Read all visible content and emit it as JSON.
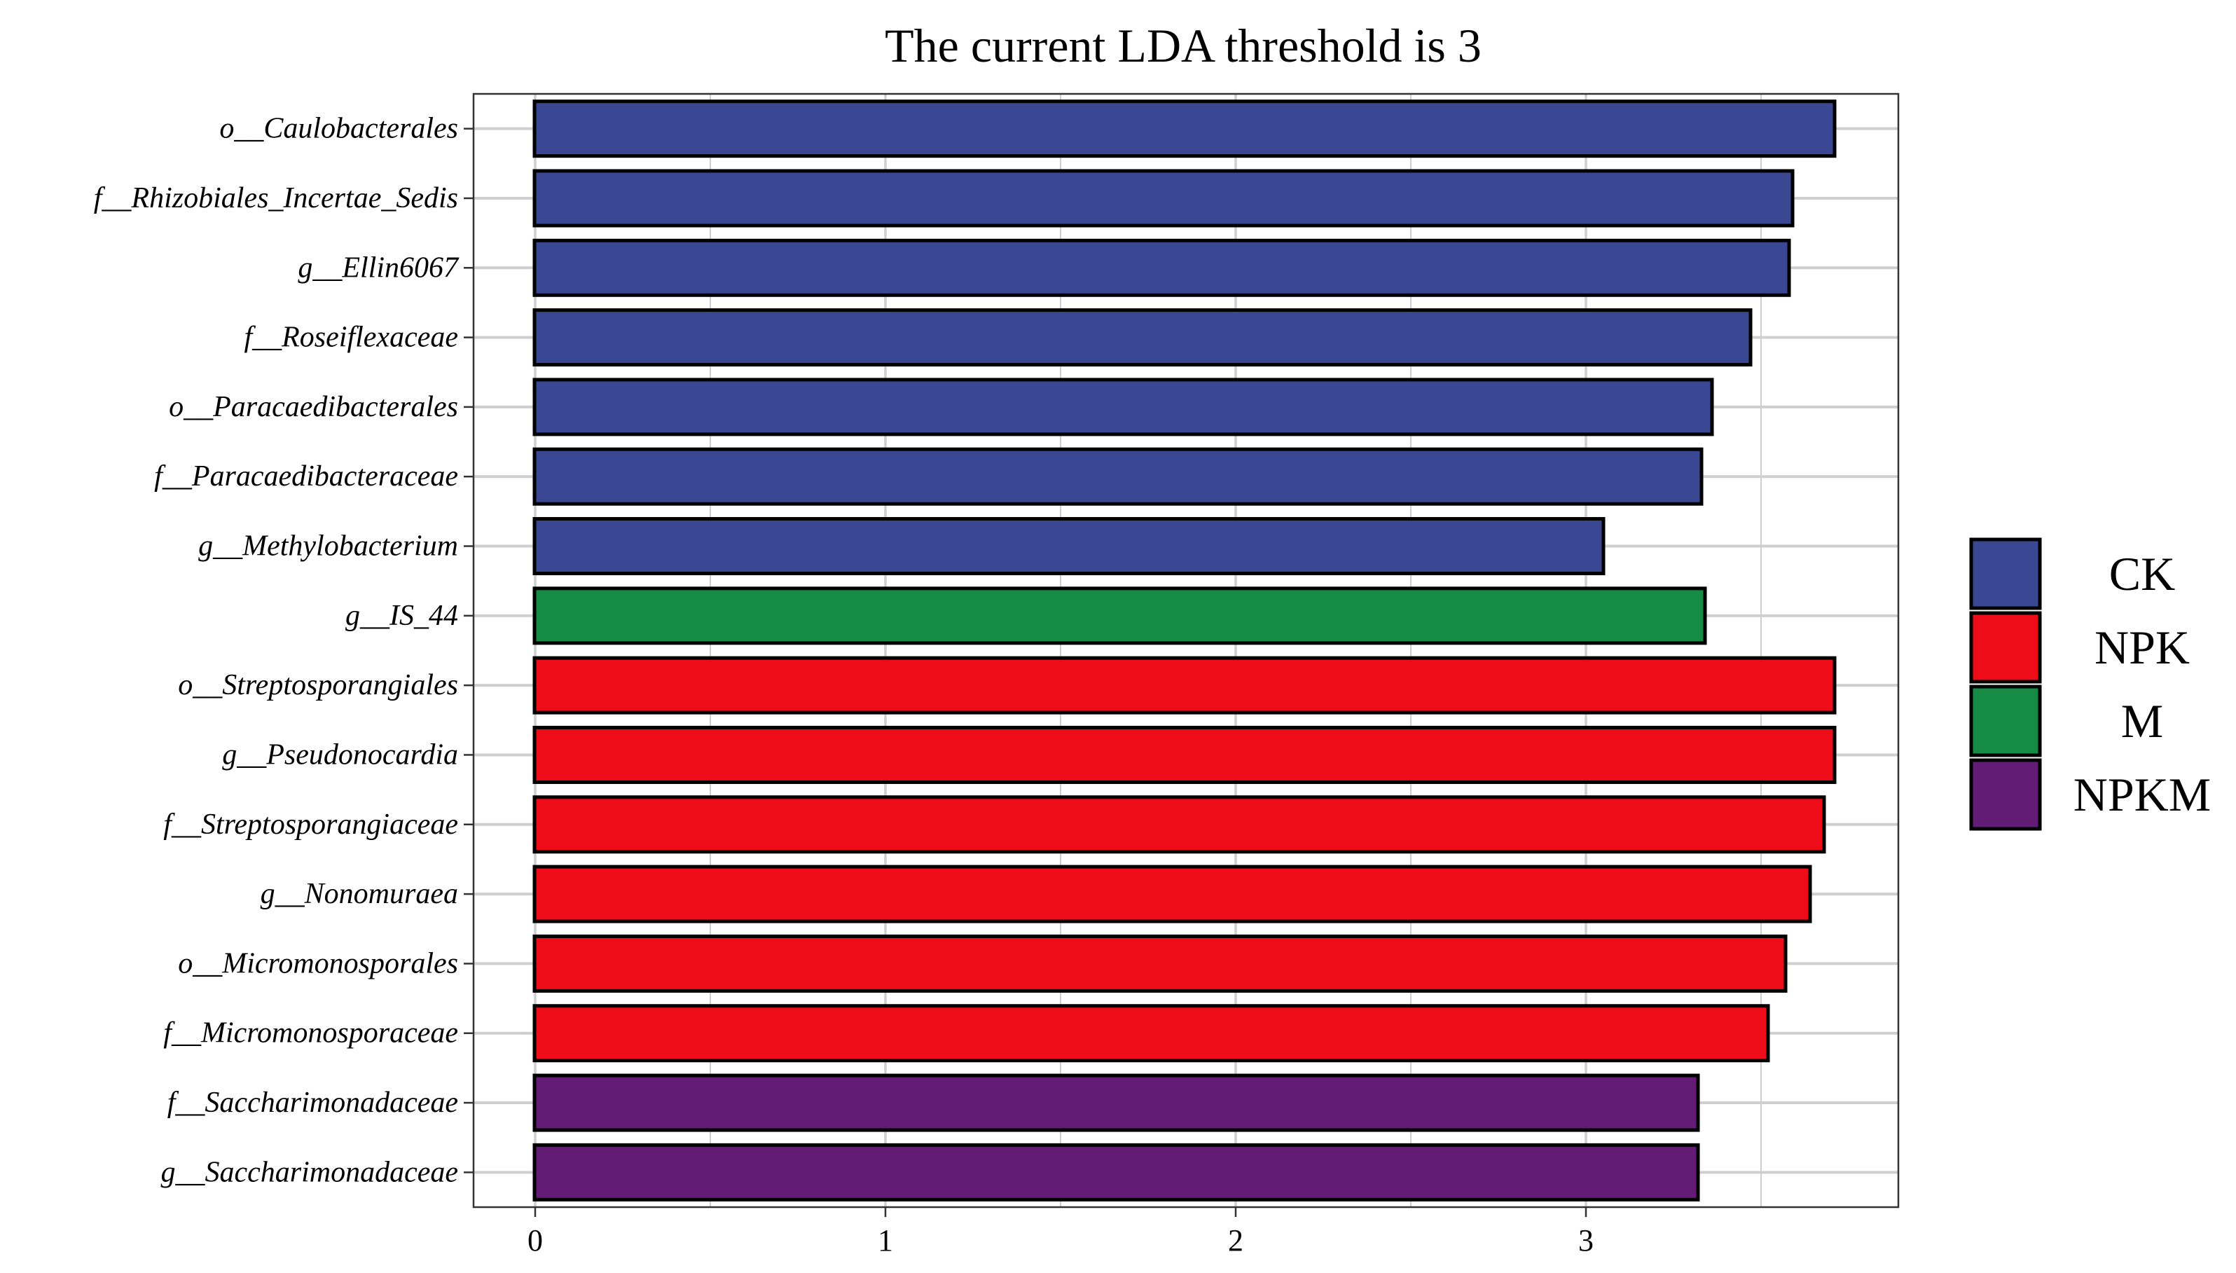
{
  "chart_data": {
    "type": "bar",
    "orientation": "horizontal",
    "title": "The current LDA threshold is 3",
    "xlabel": "",
    "ylabel": "",
    "xlim": [
      -0.18,
      3.9
    ],
    "x_ticks": [
      0,
      1,
      2,
      3
    ],
    "grid": true,
    "legend_position": "right",
    "categories": [
      "o__Caulobacterales",
      "f__Rhizobiales_Incertae_Sedis",
      "g__Ellin6067",
      "f__Roseiflexaceae",
      "o__Paracaedibacterales",
      "f__Paracaedibacteraceae",
      "g__Methylobacterium",
      "g__IS_44",
      "o__Streptosporangiales",
      "g__Pseudonocardia",
      "f__Streptosporangiaceae",
      "g__Nonomuraea",
      "o__Micromonosporales",
      "f__Micromonosporaceae",
      "f__Saccharimonadaceae",
      "g__Saccharimonadaceae"
    ],
    "values": [
      3.71,
      3.59,
      3.58,
      3.47,
      3.36,
      3.33,
      3.05,
      3.34,
      3.71,
      3.71,
      3.68,
      3.64,
      3.57,
      3.52,
      3.32,
      3.32
    ],
    "groups": [
      "CK",
      "CK",
      "CK",
      "CK",
      "CK",
      "CK",
      "CK",
      "M",
      "NPK",
      "NPK",
      "NPK",
      "NPK",
      "NPK",
      "NPK",
      "NPKM",
      "NPKM"
    ],
    "legend": [
      {
        "name": "CK",
        "color": "#3a4894"
      },
      {
        "name": "NPK",
        "color": "#ee0c18"
      },
      {
        "name": "M",
        "color": "#168b45"
      },
      {
        "name": "NPKM",
        "color": "#621c76"
      }
    ]
  }
}
